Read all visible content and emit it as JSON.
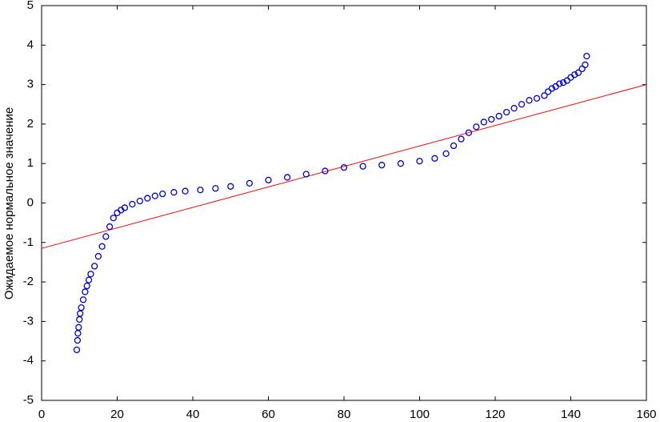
{
  "chart_data": {
    "type": "scatter",
    "ylabel": "Ожидаемое нормальное значение",
    "x": [
      9.3,
      9.5,
      9.6,
      9.8,
      10,
      10.2,
      10.5,
      11,
      11.5,
      12,
      12.5,
      13,
      14,
      15,
      16,
      17,
      18,
      19,
      20,
      21,
      22,
      24,
      26,
      28,
      30,
      32,
      35,
      38,
      42,
      46,
      50,
      55,
      60,
      65,
      70,
      75,
      80,
      85,
      90,
      95,
      100,
      104,
      107,
      109,
      111,
      113,
      115,
      117,
      119,
      121,
      123,
      125,
      127,
      129,
      131,
      133,
      134,
      135,
      136,
      137,
      138,
      139,
      140,
      141,
      142,
      143,
      143.8,
      144.2
    ],
    "values": [
      -3.72,
      -3.48,
      -3.3,
      -3.15,
      -2.95,
      -2.8,
      -2.65,
      -2.45,
      -2.25,
      -2.1,
      -1.95,
      -1.8,
      -1.6,
      -1.35,
      -1.1,
      -0.85,
      -0.6,
      -0.38,
      -0.25,
      -0.18,
      -0.12,
      -0.03,
      0.05,
      0.12,
      0.18,
      0.23,
      0.27,
      0.3,
      0.33,
      0.37,
      0.42,
      0.5,
      0.58,
      0.65,
      0.73,
      0.81,
      0.9,
      0.93,
      0.96,
      1.0,
      1.06,
      1.13,
      1.25,
      1.45,
      1.62,
      1.78,
      1.93,
      2.05,
      2.12,
      2.2,
      2.3,
      2.4,
      2.5,
      2.6,
      2.65,
      2.72,
      2.82,
      2.9,
      2.95,
      3.02,
      3.05,
      3.1,
      3.18,
      3.25,
      3.3,
      3.4,
      3.5,
      3.72
    ],
    "color": "#0000cc",
    "fit_line": {
      "x": [
        0,
        160
      ],
      "values": [
        -1.15,
        3.0
      ],
      "color": "#ff0000"
    },
    "xlim": [
      0,
      160
    ],
    "xticks": [
      0,
      20,
      40,
      60,
      80,
      100,
      120,
      140,
      160
    ],
    "ylim": [
      -5,
      5
    ],
    "yticks": [
      -5,
      -4,
      -3,
      -2,
      -1,
      0,
      1,
      2,
      3,
      4,
      5
    ],
    "grid": false
  }
}
